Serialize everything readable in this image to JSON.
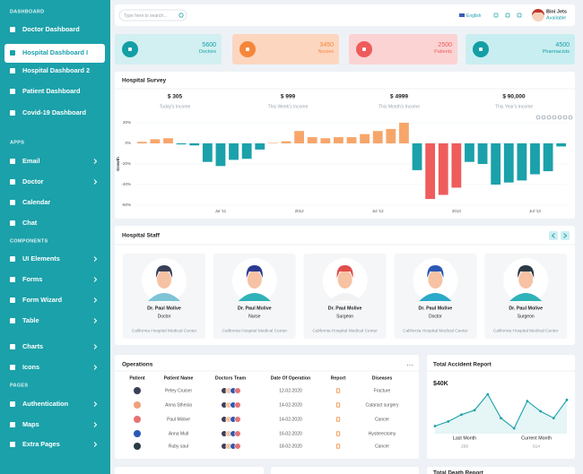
{
  "sidebar": {
    "sections": [
      {
        "title": "DASHBOARD",
        "items": [
          {
            "label": "Doctor Dashboard"
          },
          {
            "label": "Hospital Dashboard I",
            "active": true
          },
          {
            "label": "Hospital Dashboard 2"
          },
          {
            "label": "Patient Dashboard"
          },
          {
            "label": "Covid-19 Dashboard"
          }
        ]
      },
      {
        "title": "APPS",
        "items": [
          {
            "label": "Email",
            "submenu": true
          },
          {
            "label": "Doctor",
            "submenu": true
          },
          {
            "label": "Calendar"
          },
          {
            "label": "Chat"
          }
        ]
      },
      {
        "title": "COMPONENTS",
        "items": [
          {
            "label": "UI Elements",
            "submenu": true
          },
          {
            "label": "Forms",
            "submenu": true
          },
          {
            "label": "Form Wizard",
            "submenu": true
          },
          {
            "label": "Table",
            "submenu": true
          },
          {
            "label": "Charts",
            "submenu": true
          },
          {
            "label": "Icons",
            "submenu": true
          }
        ]
      },
      {
        "title": "PAGES",
        "items": [
          {
            "label": "Authentication",
            "submenu": true
          },
          {
            "label": "Maps",
            "submenu": true
          },
          {
            "label": "Extra Pages",
            "submenu": true
          }
        ]
      }
    ]
  },
  "topbar": {
    "search_placeholder": "Type here to search...",
    "language": "English",
    "user": {
      "name": "Bini Jets",
      "status": "Available"
    }
  },
  "stats": [
    {
      "value": 5600,
      "label": "Doctors",
      "color": "#139fa5",
      "background": "#d2eff1"
    },
    {
      "value": 3450,
      "label": "Nurses",
      "color": "#f5873a",
      "background": "#fcd6bf"
    },
    {
      "value": 2500,
      "label": "Patients",
      "color": "#ef5b5b",
      "background": "#fbd3d3"
    },
    {
      "value": 4500,
      "label": "Pharmacists",
      "color": "#139fa5",
      "background": "#c9eef1"
    }
  ],
  "survey": {
    "title": "Hospital Survey",
    "incomes": [
      {
        "value": "$ 305",
        "label": "Today's Income"
      },
      {
        "value": "$ 999",
        "label": "This Week's Income"
      },
      {
        "value": "$ 4999",
        "label": "This Month's Income"
      },
      {
        "value": "$ 90,000",
        "label": "This Year's Income"
      }
    ],
    "chart": {
      "type": "bar",
      "y_label": "Growth",
      "ylim": [
        -60,
        20
      ],
      "yticks": [
        {
          "value": 20,
          "label": "20%"
        },
        {
          "value": 0,
          "label": "0%"
        },
        {
          "value": -20,
          "label": "-20%"
        },
        {
          "value": -40,
          "label": "-40%"
        },
        {
          "value": -60,
          "label": "-60%"
        }
      ],
      "categories": [
        null,
        null,
        null,
        null,
        null,
        null,
        "Jul '11",
        null,
        null,
        null,
        null,
        null,
        "2012",
        null,
        null,
        null,
        null,
        null,
        "Jul '12",
        null,
        null,
        null,
        null,
        null,
        "2013",
        null,
        null,
        null,
        null,
        null,
        "Jul '13",
        null,
        null
      ],
      "values": [
        1.5,
        4,
        5,
        -1,
        -2,
        -18,
        -22,
        -16,
        -15,
        -6,
        0.5,
        2,
        12,
        6,
        5,
        6,
        6,
        9,
        12,
        14,
        20,
        -26,
        -54,
        -50,
        -43,
        -18,
        -20,
        -40,
        -38,
        -36,
        -30,
        -27,
        -3
      ],
      "colors": [
        "#f7a66b",
        "#f7a66b",
        "#f7a66b",
        "#1ba1aa",
        "#1ba1aa",
        "#1ba1aa",
        "#1ba1aa",
        "#1ba1aa",
        "#1ba1aa",
        "#1ba1aa",
        "#f7a66b",
        "#f7a66b",
        "#f7a66b",
        "#f7a66b",
        "#f7a66b",
        "#f7a66b",
        "#f7a66b",
        "#f7a66b",
        "#f7a66b",
        "#f7a66b",
        "#f7a66b",
        "#1ba1aa",
        "#ef5c5c",
        "#ef5c5c",
        "#ef5c5c",
        "#1ba1aa",
        "#1ba1aa",
        "#1ba1aa",
        "#1ba1aa",
        "#1ba1aa",
        "#1ba1aa",
        "#1ba1aa",
        "#1ba1aa"
      ]
    }
  },
  "staff": {
    "title": "Hospital Staff",
    "members": [
      {
        "name": "Dr. Paul Molive",
        "role": "Doctor",
        "hospital": "California Hospital Medical Center"
      },
      {
        "name": "Dr. Paul Molive",
        "role": "Nurse",
        "hospital": "California Hospital Medical Center"
      },
      {
        "name": "Dr. Paul Molive",
        "role": "Surgeon",
        "hospital": "California Hospital Medical Center"
      },
      {
        "name": "Dr. Paul Molive",
        "role": "Doctor",
        "hospital": "California Hospital Medical Center"
      },
      {
        "name": "Dr. Paul Molive",
        "role": "Surgeon",
        "hospital": "California Hospital Medical Center"
      }
    ]
  },
  "operations": {
    "title": "Operations",
    "headers": [
      "Patient",
      "Patient Name",
      "Doctors Team",
      "Date Of Operation",
      "Report",
      "Diseases"
    ],
    "rows": [
      [
        "Petey Cruiser",
        "12-02-2020",
        "Fracture"
      ],
      [
        "Anna Sthesia",
        "14-02-2020",
        "Cataract surgery"
      ],
      [
        "Paul Molive",
        "14-02-2020",
        "Cancer"
      ],
      [
        "Anna Mull",
        "16-02-2020",
        "Hysterectomy"
      ],
      [
        "Ruby saul",
        "18-02-2020",
        "Cancer"
      ]
    ]
  },
  "accident": {
    "title": "Total Accident Report",
    "amount": "$40K",
    "last_month": {
      "label": "Last Month",
      "value": "256"
    },
    "current_month": {
      "label": "Current Month",
      "value": "514"
    },
    "chart": {
      "type": "line",
      "color": "#1ba1aa",
      "values": [
        30,
        34,
        40,
        44,
        58,
        37,
        28,
        52,
        43,
        37,
        53
      ]
    }
  },
  "death": {
    "title": "Total Death Report"
  }
}
